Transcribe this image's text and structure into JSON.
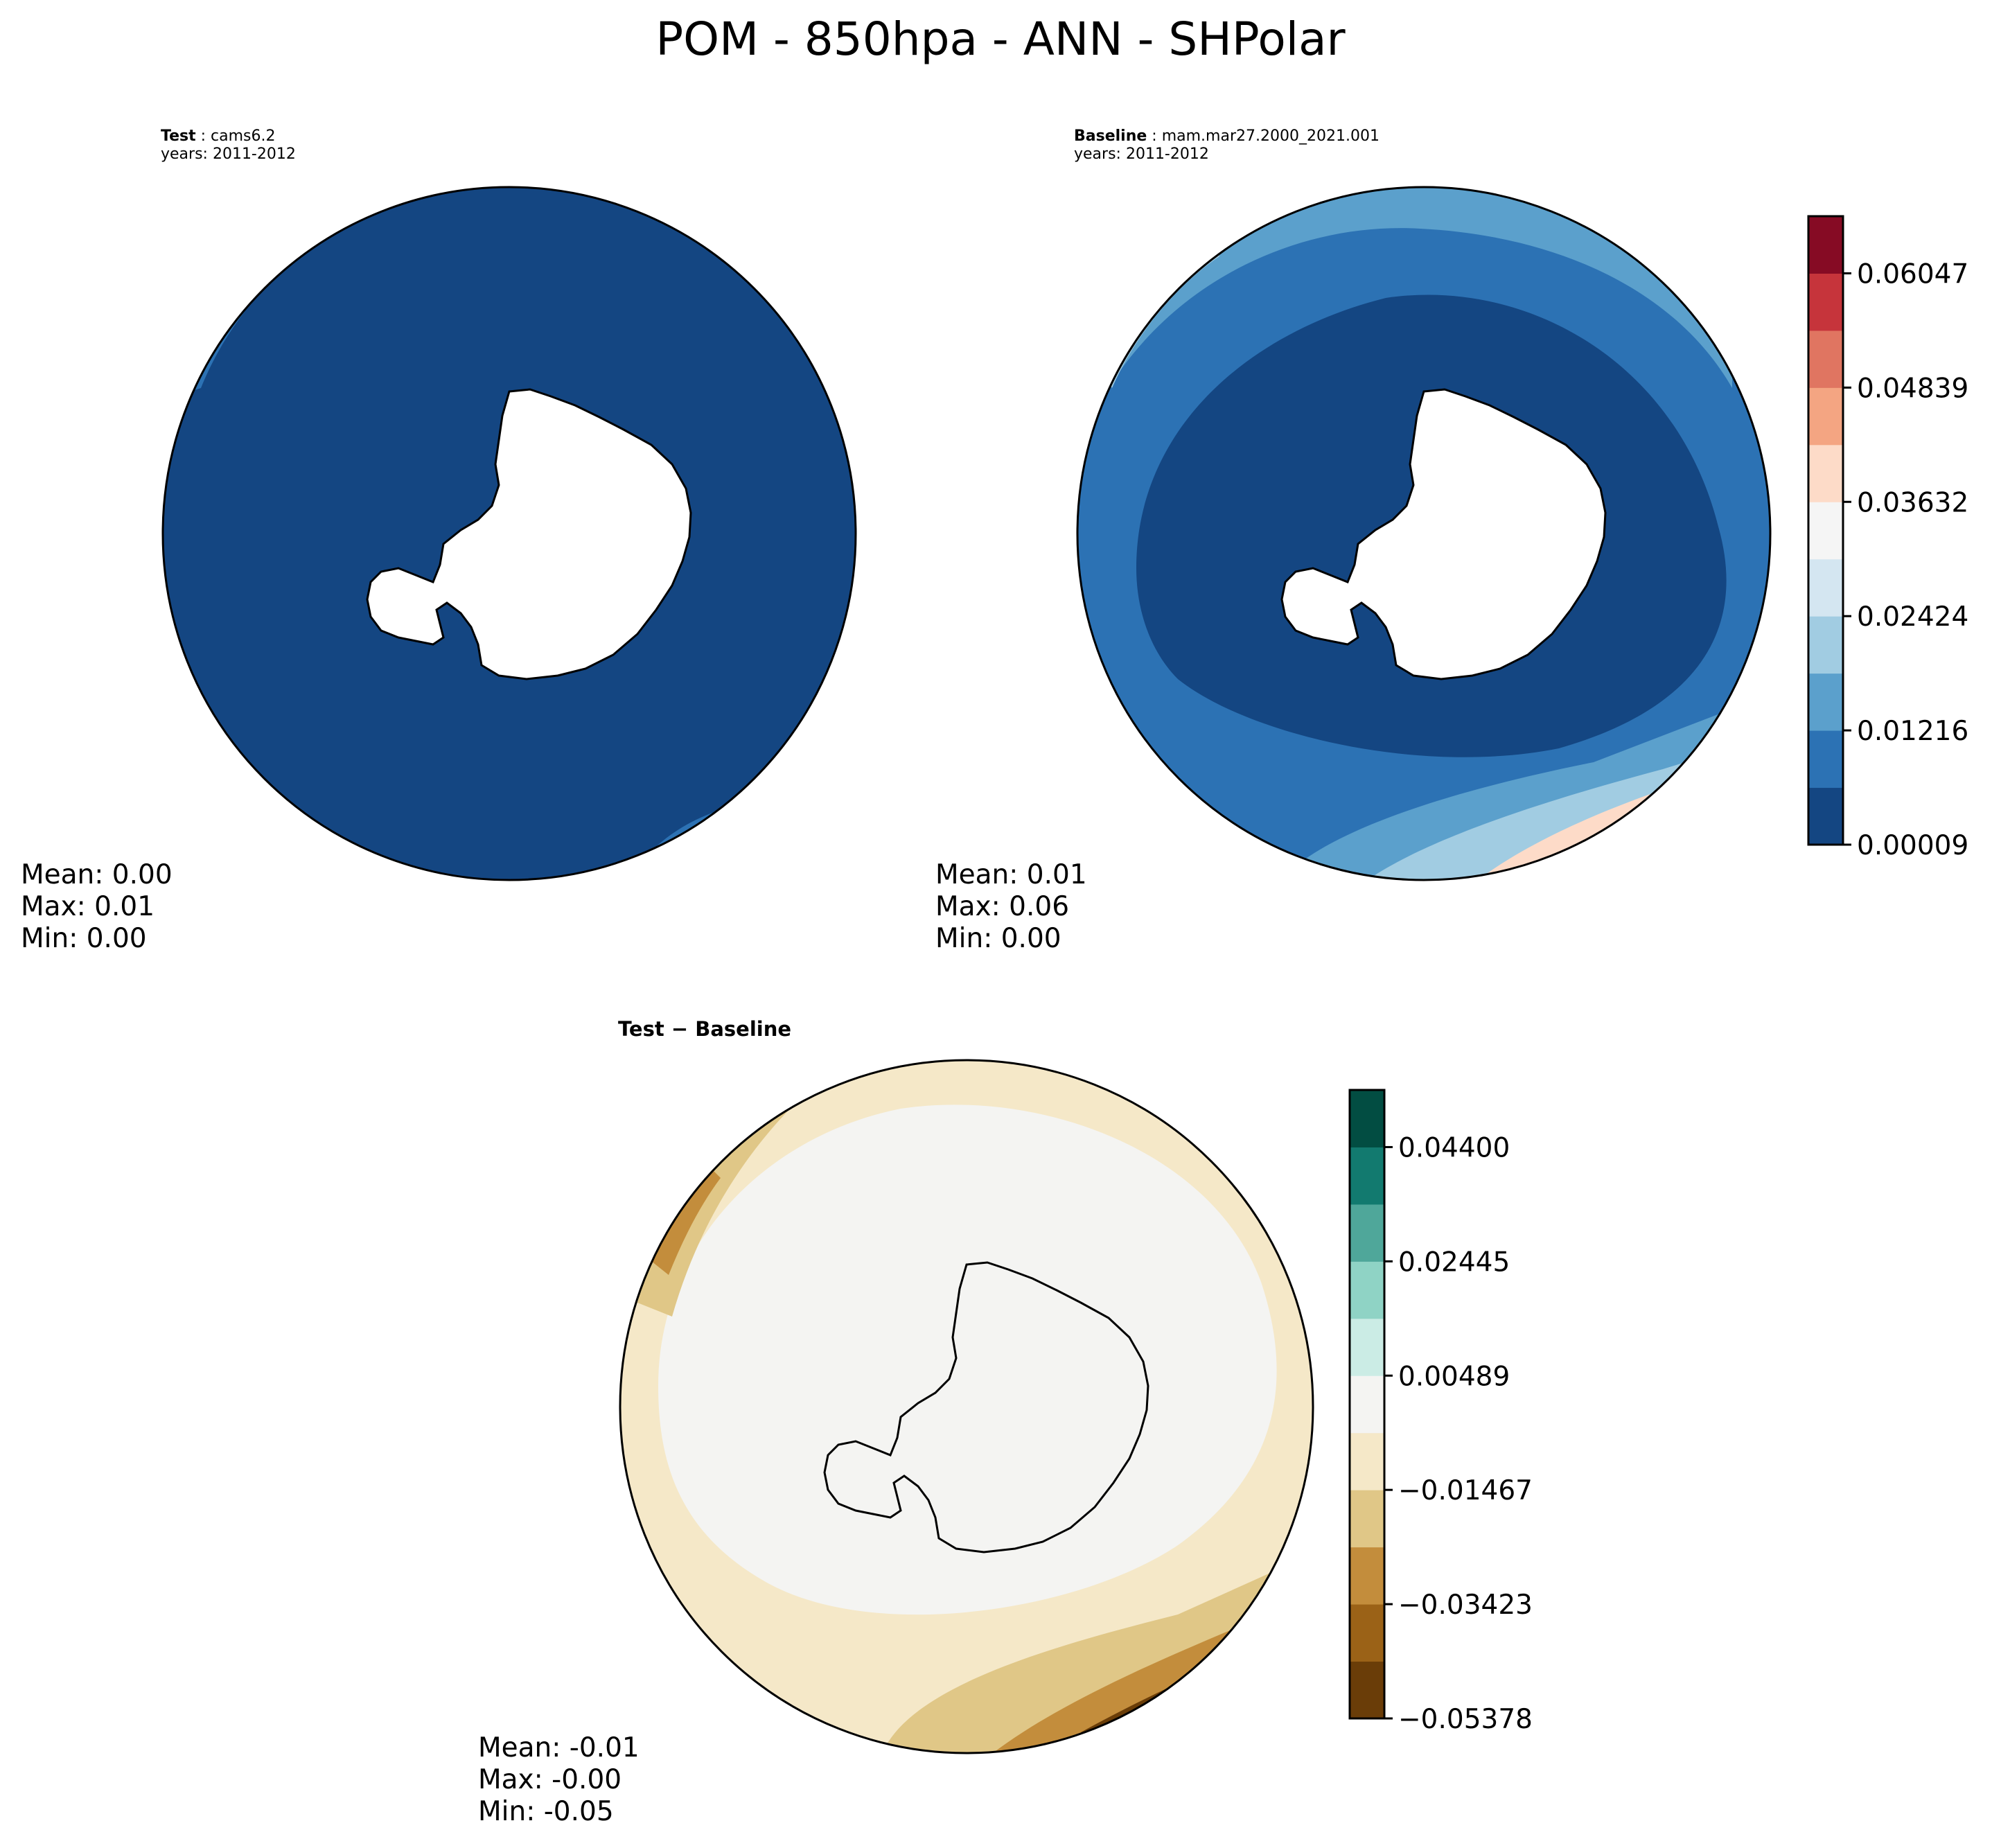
{
  "figure": {
    "title": "POM - 850hpa - ANN - SHPolar"
  },
  "panels": {
    "test": {
      "case_label": "Test",
      "case_name": "cams6.2",
      "years": "years: 2011-2012",
      "stats": {
        "mean": "Mean:  0.00",
        "max": "Max:  0.01",
        "min": "Min:  0.00"
      },
      "color_levels": [
        "#144682"
      ]
    },
    "baseline": {
      "case_label": "Baseline",
      "case_name": "mam.mar27.2000_2021.001",
      "years": "years: 2011-2012",
      "stats": {
        "mean": "Mean:  0.01",
        "max": "Max:  0.06",
        "min": "Min:  0.00"
      }
    },
    "diff": {
      "title": "Test − Baseline",
      "stats": {
        "mean": "Mean: -0.01",
        "max": "Max: -0.00",
        "min": "Min: -0.05"
      }
    }
  },
  "colorbars": {
    "main": {
      "colormap": "RdBu_r",
      "colors": [
        "#144682",
        "#2c72b4",
        "#5ba0cc",
        "#a1cce2",
        "#d4e6f1",
        "#f5f5f5",
        "#fddbc8",
        "#f4a582",
        "#e07561",
        "#c6343b",
        "#860b24"
      ],
      "ticks": [
        "0.00009",
        "0.01216",
        "0.02424",
        "0.03632",
        "0.04839",
        "0.06047"
      ]
    },
    "diff": {
      "colormap": "BrBG",
      "colors": [
        "#6a3d08",
        "#9b6217",
        "#c38d3c",
        "#e0c787",
        "#f5e8c8",
        "#f4f4f2",
        "#cbece5",
        "#8fd3c5",
        "#4fa79a",
        "#127a6f",
        "#024d42"
      ],
      "ticks": [
        "−0.05378",
        "−0.03423",
        "−0.01467",
        "0.00489",
        "0.02445",
        "0.04400"
      ]
    }
  },
  "colors": {
    "land": "#ffffff",
    "coastline": "#000000",
    "frame": "#000000"
  },
  "map": {
    "projection": "South Polar Stereographic"
  }
}
